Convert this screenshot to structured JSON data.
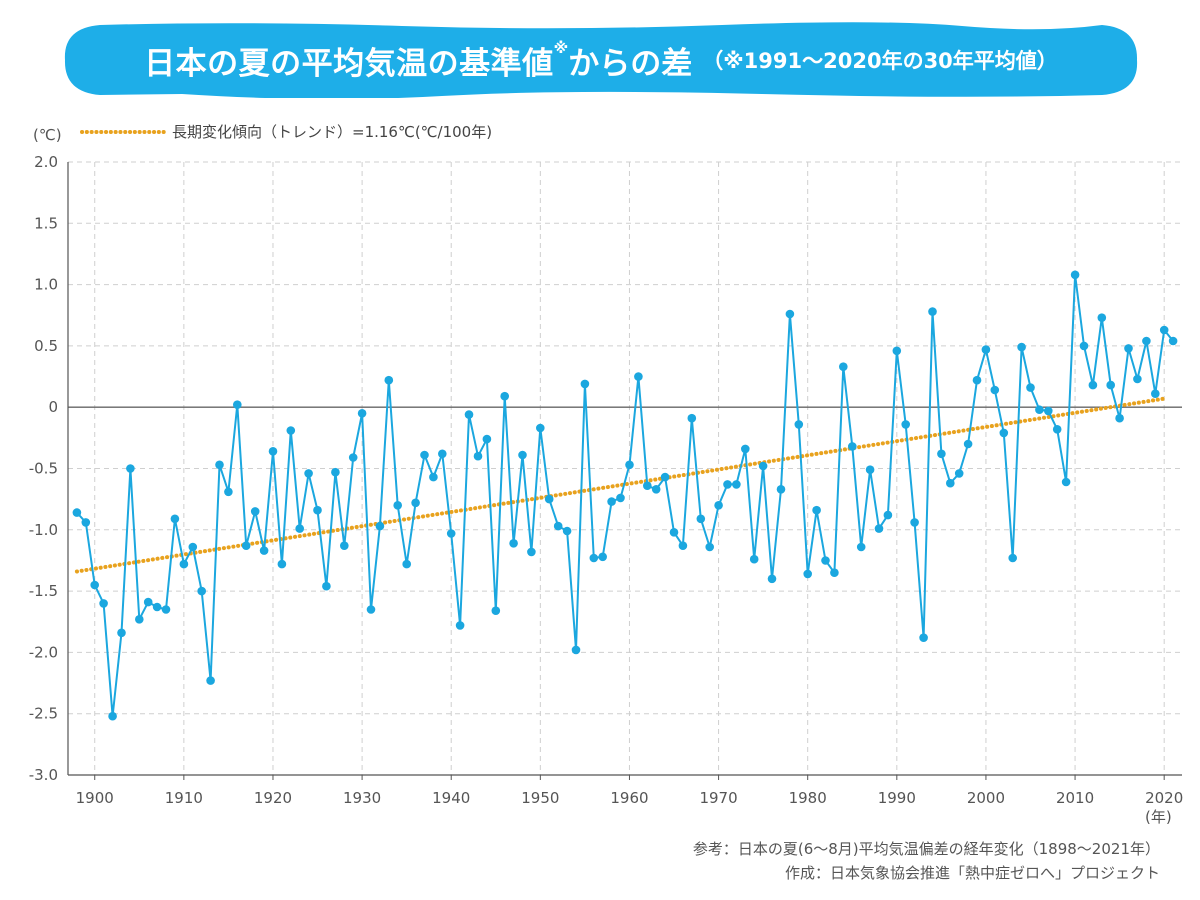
{
  "header": {
    "title": "日本の夏の平均気温の基準値",
    "title_mark": "※",
    "title_suffix": "からの差",
    "subtitle": "（※1991〜2020年の30年平均値）"
  },
  "colors": {
    "banner": "#1eaee8",
    "series": "#1ba7df",
    "trend": "#e8a21e",
    "grid": "#cfcfcf",
    "axis": "#555555",
    "zero": "#666666"
  },
  "chart_data": {
    "type": "line",
    "ylabel": "(℃)",
    "xlabel": "(年)",
    "ylim": [
      -3.0,
      2.0
    ],
    "xlim": [
      1897,
      2022
    ],
    "yticks": [
      2.0,
      1.5,
      1.0,
      0.5,
      0,
      -0.5,
      -1.0,
      -1.5,
      -2.0,
      -2.5,
      -3.0
    ],
    "ytick_labels": [
      "2.0",
      "1.5",
      "1.0",
      "0.5",
      "0",
      "-0.5",
      "-1.0",
      "-1.5",
      "-2.0",
      "-2.5",
      "-3.0"
    ],
    "xticks": [
      1900,
      1910,
      1920,
      1930,
      1940,
      1950,
      1960,
      1970,
      1980,
      1990,
      2000,
      2010,
      2020
    ],
    "xtick_labels": [
      "1900",
      "1910",
      "1920",
      "1930",
      "1940",
      "1950",
      "1960",
      "1970",
      "1980",
      "1990",
      "2000",
      "2010",
      "2020"
    ],
    "grid": true,
    "legend": {
      "position": "top-left",
      "label": "長期変化傾向（トレンド）=1.16℃(℃/100年)"
    },
    "series": [
      {
        "name": "平均気温偏差",
        "x_start": 1898,
        "values": [
          -0.86,
          -0.94,
          -1.45,
          -1.6,
          -2.52,
          -1.84,
          -0.5,
          -1.73,
          -1.59,
          -1.63,
          -1.65,
          -0.91,
          -1.28,
          -1.14,
          -1.5,
          -2.23,
          -0.47,
          -0.69,
          0.02,
          -1.13,
          -0.85,
          -1.17,
          -0.36,
          -1.28,
          -0.19,
          -0.99,
          -0.54,
          -0.84,
          -1.46,
          -0.53,
          -1.13,
          -0.41,
          -0.05,
          -1.65,
          -0.97,
          0.22,
          -0.8,
          -1.28,
          -0.78,
          -0.39,
          -0.57,
          -0.38,
          -1.03,
          -1.78,
          -0.06,
          -0.4,
          -0.26,
          -1.66,
          0.09,
          -1.11,
          -0.39,
          -1.18,
          -0.17,
          -0.75,
          -0.97,
          -1.01,
          -1.98,
          0.19,
          -1.23,
          -1.22,
          -0.77,
          -0.74,
          -0.47,
          0.25,
          -0.64,
          -0.67,
          -0.57,
          -1.02,
          -1.13,
          -0.09,
          -0.91,
          -1.14,
          -0.8,
          -0.63,
          -0.63,
          -0.34,
          -1.24,
          -0.48,
          -1.4,
          -0.67,
          0.76,
          -0.14,
          -1.36,
          -0.84,
          -1.25,
          -1.35,
          0.33,
          -0.32,
          -1.14,
          -0.51,
          -0.99,
          -0.88,
          0.46,
          -0.14,
          -0.94,
          -1.88,
          0.78,
          -0.38,
          -0.62,
          -0.54,
          -0.3,
          0.22,
          0.47,
          0.14,
          -0.21,
          -1.23,
          0.49,
          0.16,
          -0.02,
          -0.03,
          -0.18,
          -0.61,
          1.08,
          0.5,
          0.18,
          0.73,
          0.18,
          -0.09,
          0.48,
          0.23,
          0.54,
          0.11,
          0.63,
          0.54
        ]
      },
      {
        "name": "長期変化傾向（トレンド）",
        "x": [
          1898,
          2020
        ],
        "values": [
          -1.34,
          0.07
        ]
      }
    ]
  },
  "footer": {
    "reference": "参考：日本の夏(6〜8月)平均気温偏差の経年変化（1898〜2021年）",
    "creator": "作成：日本気象協会推進「熱中症ゼロへ」プロジェクト"
  }
}
